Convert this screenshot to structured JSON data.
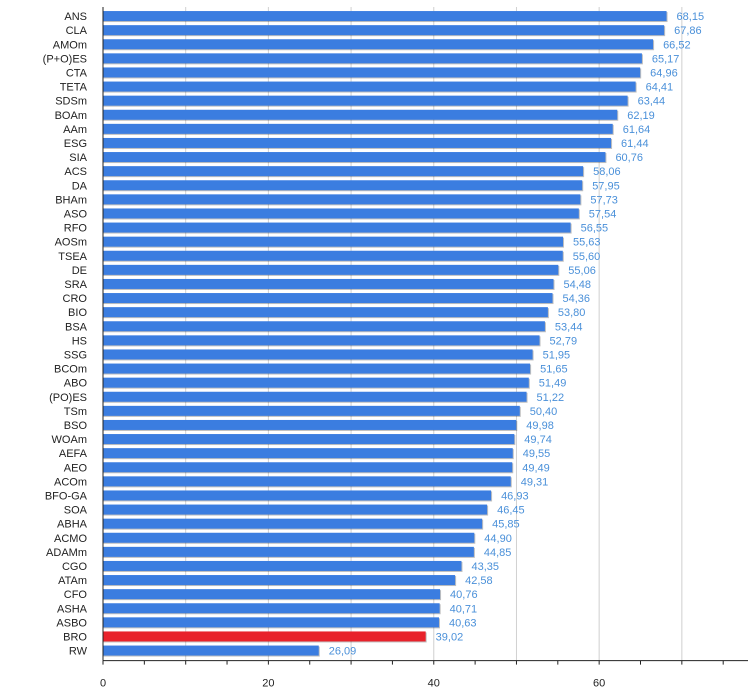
{
  "chart_data": {
    "type": "bar",
    "orientation": "horizontal",
    "categories": [
      "ANS",
      "CLA",
      "AMOm",
      "(P+O)ES",
      "CTA",
      "TETA",
      "SDSm",
      "BOAm",
      "AAm",
      "ESG",
      "SIA",
      "ACS",
      "DA",
      "BHAm",
      "ASO",
      "RFO",
      "AOSm",
      "TSEA",
      "DE",
      "SRA",
      "CRO",
      "BIO",
      "BSA",
      "HS",
      "SSG",
      "BCOm",
      "ABO",
      "(PO)ES",
      "TSm",
      "BSO",
      "WOAm",
      "AEFA",
      "AEO",
      "ACOm",
      "BFO-GA",
      "SOA",
      "ABHA",
      "ACMO",
      "ADAMm",
      "CGO",
      "ATAm",
      "CFO",
      "ASHA",
      "ASBO",
      "BRO",
      "RW"
    ],
    "values": [
      68.15,
      67.86,
      66.52,
      65.17,
      64.96,
      64.41,
      63.44,
      62.19,
      61.64,
      61.44,
      60.76,
      58.06,
      57.95,
      57.73,
      57.54,
      56.55,
      55.63,
      55.6,
      55.06,
      54.48,
      54.36,
      53.8,
      53.44,
      52.79,
      51.95,
      51.65,
      51.49,
      51.22,
      50.4,
      49.98,
      49.74,
      49.55,
      49.49,
      49.31,
      46.93,
      46.45,
      45.85,
      44.9,
      44.85,
      43.35,
      42.58,
      40.76,
      40.71,
      40.63,
      39.02,
      26.09
    ],
    "value_labels": [
      "68,15",
      "67,86",
      "66,52",
      "65,17",
      "64,96",
      "64,41",
      "63,44",
      "62,19",
      "61,64",
      "61,44",
      "60,76",
      "58,06",
      "57,95",
      "57,73",
      "57,54",
      "56,55",
      "55,63",
      "55,60",
      "55,06",
      "54,48",
      "54,36",
      "53,80",
      "53,44",
      "52,79",
      "51,95",
      "51,65",
      "51,49",
      "51,22",
      "50,40",
      "49,98",
      "49,74",
      "49,55",
      "49,49",
      "49,31",
      "46,93",
      "46,45",
      "45,85",
      "44,90",
      "44,85",
      "43,35",
      "42,58",
      "40,76",
      "40,71",
      "40,63",
      "39,02",
      "26,09"
    ],
    "highlight_category": "BRO",
    "xlim": [
      0,
      78
    ],
    "x_ticks": [
      0,
      20,
      40,
      60
    ],
    "grid": "vertical",
    "title": "",
    "xlabel": "",
    "ylabel": "",
    "colors": {
      "bar": "#3b7de0",
      "bar_highlight": "#e8222b",
      "value_label": "#4a90d9",
      "grid": "#d0d0d0",
      "axis": "#222222"
    }
  }
}
